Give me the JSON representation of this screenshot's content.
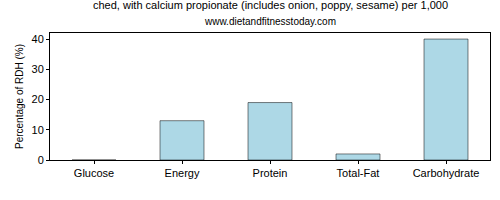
{
  "chart_data": {
    "type": "bar",
    "title": "ched, with calcium propionate (includes onion, poppy, sesame) per 1,000",
    "subtitle": "www.dietandfitnesstoday.com",
    "y_label": "Percentage of RDH (%)",
    "categories": [
      "Glucose",
      "Energy",
      "Protein",
      "Total-Fat",
      "Carbohydrate"
    ],
    "values": [
      0,
      13,
      19,
      2,
      40
    ],
    "color": "#add8e6",
    "ylim": [
      0,
      42
    ],
    "yticks": [
      0,
      10,
      20,
      30,
      40
    ],
    "grid": false
  }
}
